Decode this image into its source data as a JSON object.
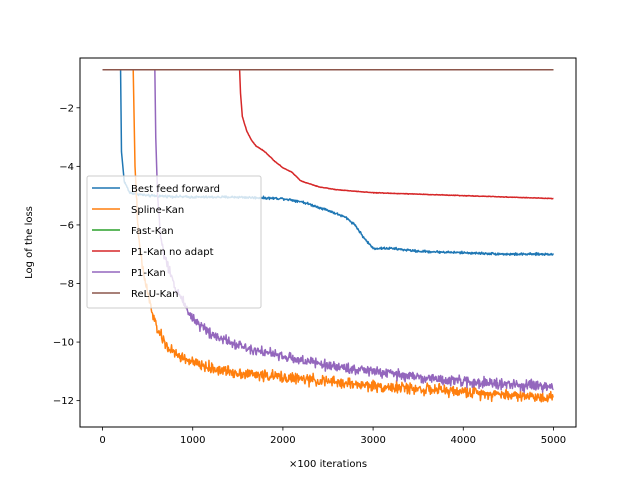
{
  "chart_data": {
    "type": "line",
    "title": "",
    "xlabel": "×100 iterations",
    "ylabel": "Log of the loss",
    "xlim": [
      -250,
      5250
    ],
    "ylim": [
      -12.9,
      -0.3
    ],
    "xticks": [
      0,
      1000,
      2000,
      3000,
      4000,
      5000
    ],
    "yticks": [
      -12,
      -10,
      -8,
      -6,
      -4,
      -2
    ],
    "xtick_labels": [
      "0",
      "1000",
      "2000",
      "3000",
      "4000",
      "5000"
    ],
    "ytick_labels": [
      "−12",
      "−10",
      "−8",
      "−6",
      "−4",
      "−2"
    ],
    "grid": false,
    "legend_position": "center-left",
    "series": [
      {
        "name": "Best feed forward",
        "color": "#1f77b4",
        "noise": 0.06,
        "x": [
          0,
          200,
          210,
          240,
          300,
          500,
          1000,
          1500,
          2000,
          2200,
          2500,
          2700,
          2800,
          2900,
          3000,
          3200,
          3500,
          4000,
          4500,
          5000
        ],
        "y": [
          -0.7,
          -0.7,
          -3.5,
          -4.5,
          -4.9,
          -5.0,
          -5.05,
          -5.05,
          -5.1,
          -5.2,
          -5.5,
          -5.75,
          -6.0,
          -6.45,
          -6.8,
          -6.8,
          -6.9,
          -6.95,
          -7.0,
          -7.0
        ]
      },
      {
        "name": "Spline-Kan",
        "color": "#ff7f0e",
        "noise": 0.28,
        "x": [
          0,
          340,
          360,
          400,
          450,
          500,
          550,
          600,
          700,
          800,
          1000,
          1200,
          1500,
          2000,
          2500,
          3000,
          3500,
          4000,
          4500,
          5000
        ],
        "y": [
          -0.7,
          -0.7,
          -4.0,
          -6.5,
          -7.6,
          -8.3,
          -9.0,
          -9.5,
          -10.1,
          -10.4,
          -10.7,
          -10.9,
          -11.05,
          -11.2,
          -11.35,
          -11.5,
          -11.6,
          -11.7,
          -11.8,
          -11.9
        ]
      },
      {
        "name": "Fast-Kan",
        "color": "#2ca02c",
        "noise": 0,
        "x": [
          0,
          5000
        ],
        "y": [
          -0.7,
          -0.7
        ]
      },
      {
        "name": "P1-Kan no adapt",
        "color": "#d62728",
        "noise": 0.015,
        "x": [
          0,
          1520,
          1530,
          1550,
          1600,
          1650,
          1700,
          1800,
          1900,
          2000,
          2100,
          2200,
          2400,
          2600,
          3000,
          3500,
          4000,
          4500,
          5000
        ],
        "y": [
          -0.7,
          -0.7,
          -1.5,
          -2.3,
          -2.8,
          -3.1,
          -3.3,
          -3.5,
          -3.8,
          -4.05,
          -4.2,
          -4.5,
          -4.7,
          -4.8,
          -4.9,
          -4.95,
          -5.0,
          -5.05,
          -5.1
        ]
      },
      {
        "name": "P1-Kan",
        "color": "#9467bd",
        "noise": 0.26,
        "x": [
          0,
          580,
          590,
          610,
          640,
          680,
          720,
          800,
          1000,
          1200,
          1500,
          2000,
          2500,
          3000,
          3500,
          4000,
          4500,
          5000
        ],
        "y": [
          -0.7,
          -0.7,
          -3.0,
          -5.0,
          -6.3,
          -7.0,
          -7.4,
          -8.1,
          -9.2,
          -9.7,
          -10.1,
          -10.5,
          -10.8,
          -11.0,
          -11.2,
          -11.35,
          -11.45,
          -11.55
        ]
      },
      {
        "name": "ReLU-Kan",
        "color": "#8c564b",
        "noise": 0,
        "x": [
          0,
          5000
        ],
        "y": [
          -0.7,
          -0.7
        ]
      }
    ]
  }
}
